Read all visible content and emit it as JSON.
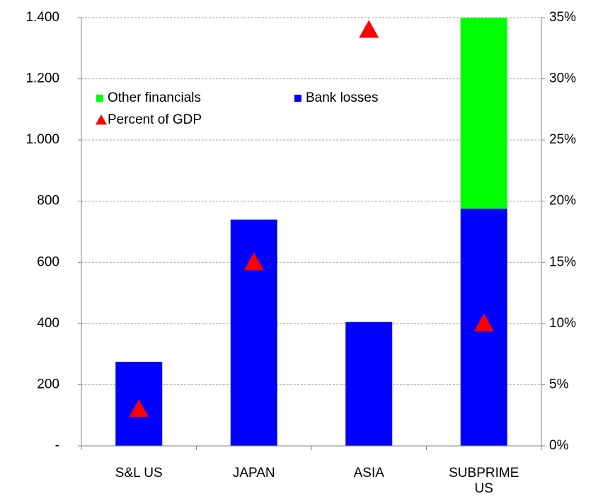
{
  "chart_data": {
    "type": "bar",
    "stacked": true,
    "categories": [
      "S&L US",
      "JAPAN",
      "ASIA",
      "SUBPRIME US"
    ],
    "series": [
      {
        "name": "Bank losses",
        "color": "#0000ff",
        "values": [
          275,
          740,
          405,
          775
        ]
      },
      {
        "name": "Other financials",
        "color": "#00ff00",
        "values": [
          null,
          null,
          null,
          625
        ]
      },
      {
        "name": "Percent of GDP",
        "type": "scatter",
        "axis": "y2",
        "color": "#ff0000",
        "values": [
          3,
          15,
          34,
          10
        ]
      }
    ],
    "ylim": [
      0,
      1400
    ],
    "yticks": [
      {
        "value": 0,
        "label": "-"
      },
      200,
      400,
      600,
      800,
      {
        "value": 1000,
        "label": "1.000"
      },
      {
        "value": 1200,
        "label": "1.200"
      },
      {
        "value": 1400,
        "label": "1.400"
      }
    ],
    "y2lim": [
      0,
      35
    ],
    "y2ticks": [
      {
        "value": 0,
        "label": "0%"
      },
      {
        "value": 5,
        "label": "5%"
      },
      {
        "value": 10,
        "label": "10%"
      },
      {
        "value": 15,
        "label": "15%"
      },
      {
        "value": 20,
        "label": "20%"
      },
      {
        "value": 25,
        "label": "25%"
      },
      {
        "value": 30,
        "label": "30%"
      },
      {
        "value": 35,
        "label": "35%"
      }
    ],
    "grid": true,
    "legend": "top-left"
  }
}
